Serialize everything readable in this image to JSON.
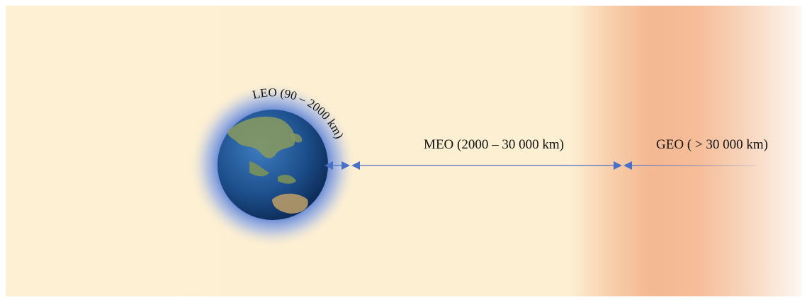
{
  "orbits": [
    {
      "label": "LEO (90 – 2000 km)"
    },
    {
      "label": "MEO (2000 – 30 000 km)"
    },
    {
      "label": "GEO ( > 30 000 km)"
    }
  ]
}
